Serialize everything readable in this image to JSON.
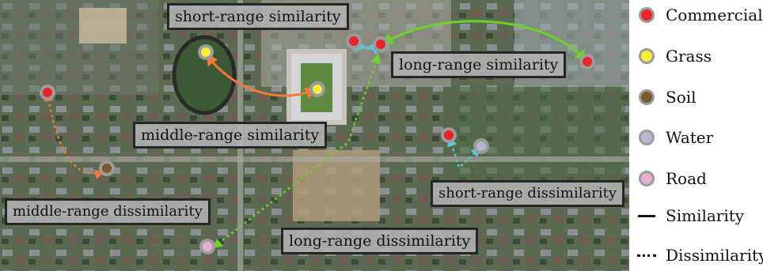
{
  "colors": {
    "commercial": "#e8262a",
    "grass": "#f2ec3a",
    "soil": "#7a5a2c",
    "water": "#b9b7cf",
    "road": "#e6aed0",
    "sim_short": "#5bc8d8",
    "sim_middle": "#f07a3a",
    "sim_long": "#6ed02a",
    "marker_ring": "#9b9b9b"
  },
  "annotations": {
    "short_sim": "short-range similarity",
    "long_sim": "long-range similarity",
    "middle_sim": "middle-range similarity",
    "middle_dissim": "middle-range dissimilarity",
    "short_dissim": "short-range dissimilarity",
    "long_dissim": "long-range dissimilarity"
  },
  "legend": {
    "commercial": "Commercial",
    "grass": "Grass",
    "soil": "Soil",
    "water": "Water",
    "road": "Road",
    "similarity": "Similarity",
    "dissimilarity": "Dissimilarity"
  }
}
